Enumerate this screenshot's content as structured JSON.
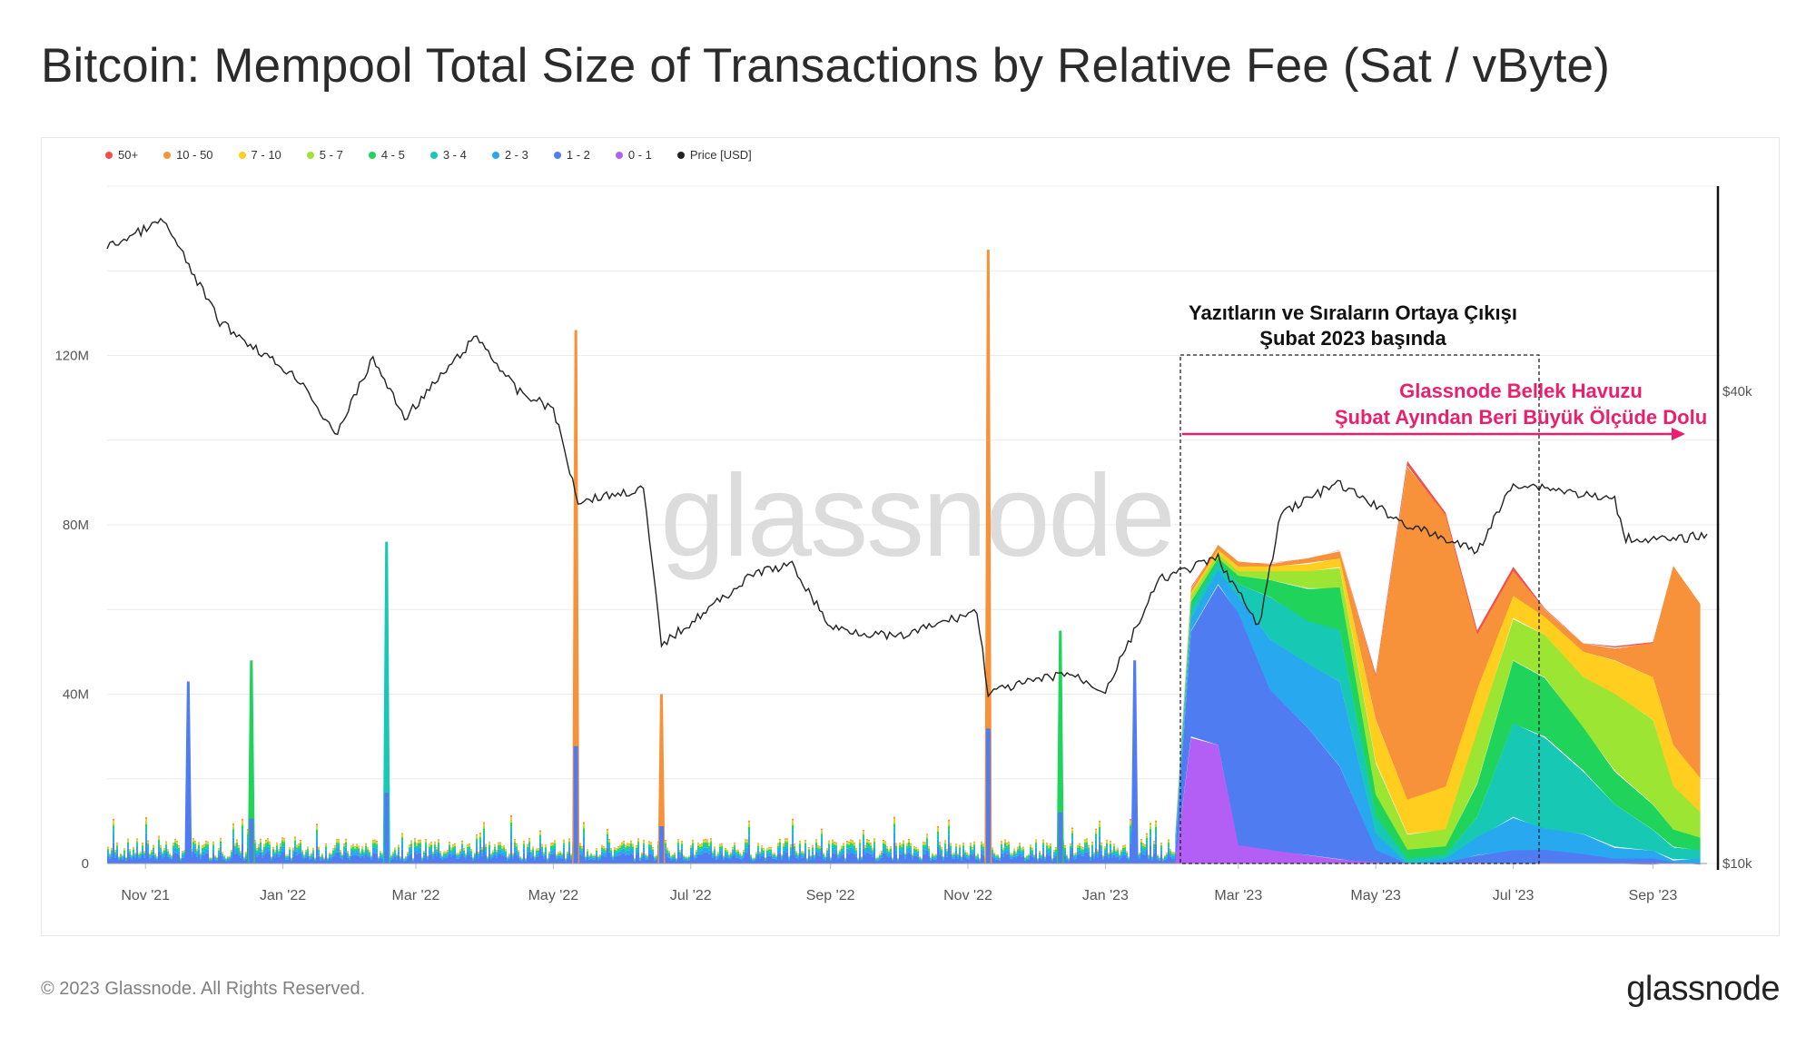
{
  "title": "Bitcoin: Mempool Total Size of Transactions by Relative Fee (Sat / vByte)",
  "legend": [
    {
      "label": "50+",
      "color": "#f0504f"
    },
    {
      "label": "10 - 50",
      "color": "#f7923a"
    },
    {
      "label": "7 - 10",
      "color": "#ffce1f"
    },
    {
      "label": "5 - 7",
      "color": "#9ce533"
    },
    {
      "label": "4 - 5",
      "color": "#1fd35b"
    },
    {
      "label": "3 - 4",
      "color": "#17c9b4"
    },
    {
      "label": "2 - 3",
      "color": "#27a8ef"
    },
    {
      "label": "1 - 2",
      "color": "#4f7df1"
    },
    {
      "label": "0 - 1",
      "color": "#b35ef5"
    },
    {
      "label": "Price [USD]",
      "color": "#222222"
    }
  ],
  "annotations": {
    "inscriptions_line1": "Yazıtların ve Sıraların Ortaya Çıkışı",
    "inscriptions_line2": "Şubat 2023 başında",
    "glassnode_line1": "Glassnode Bellek Havuzu",
    "glassnode_line2": "Şubat Ayından Beri Büyük Ölçüde Dolu",
    "glassnode_color": "#ec1f6e"
  },
  "watermark": "glassnode",
  "footer": {
    "copyright": "© 2023 Glassnode. All Rights Reserved.",
    "logo": "glassnode"
  },
  "chart_data": {
    "type": "area",
    "title": "Bitcoin: Mempool Total Size of Transactions by Relative Fee (Sat / vByte)",
    "x_range": [
      "2021-10-15",
      "2023-09-25"
    ],
    "x_ticks": [
      {
        "label": "Nov '21",
        "date": "2021-11-01"
      },
      {
        "label": "Jan '22",
        "date": "2022-01-01"
      },
      {
        "label": "Mar '22",
        "date": "2022-03-01"
      },
      {
        "label": "May '22",
        "date": "2022-05-01"
      },
      {
        "label": "Jul '22",
        "date": "2022-07-01"
      },
      {
        "label": "Sep '22",
        "date": "2022-09-01"
      },
      {
        "label": "Nov '22",
        "date": "2022-11-01"
      },
      {
        "label": "Jan '23",
        "date": "2023-01-01"
      },
      {
        "label": "Mar '23",
        "date": "2023-03-01"
      },
      {
        "label": "May '23",
        "date": "2023-05-01"
      },
      {
        "label": "Jul '23",
        "date": "2023-07-01"
      },
      {
        "label": "Sep '23",
        "date": "2023-09-01"
      }
    ],
    "y_left": {
      "ticks": [
        {
          "label": "0",
          "value": 0
        },
        {
          "label": "40M",
          "value": 40
        },
        {
          "label": "80M",
          "value": 80
        },
        {
          "label": "120M",
          "value": 120
        }
      ],
      "range": [
        0,
        160
      ]
    },
    "y_right": {
      "ticks": [
        {
          "label": "$10k",
          "value": 10000
        },
        {
          "label": "$40k",
          "value": 40000
        }
      ],
      "scale": "log",
      "range": [
        10000,
        73000
      ]
    },
    "grid": true,
    "legend_position": "top-left",
    "series_order_bottom_to_top": [
      "0 - 1",
      "1 - 2",
      "2 - 3",
      "3 - 4",
      "4 - 5",
      "5 - 7",
      "7 - 10",
      "10 - 50",
      "50+"
    ],
    "stacked_bands_millions": [
      {
        "date": "2023-02-01",
        "values": [
          0,
          3,
          2,
          1,
          0,
          0,
          0,
          1,
          0
        ]
      },
      {
        "date": "2023-02-08",
        "values": [
          30,
          25,
          3,
          2,
          2,
          1,
          1,
          1,
          0
        ]
      },
      {
        "date": "2023-02-20",
        "values": [
          28,
          38,
          3,
          2,
          1,
          1,
          1,
          1,
          0
        ]
      },
      {
        "date": "2023-03-01",
        "values": [
          4,
          55,
          4,
          3,
          2,
          1,
          1,
          1,
          0
        ]
      },
      {
        "date": "2023-03-15",
        "values": [
          3,
          38,
          12,
          10,
          4,
          2,
          1,
          1,
          0
        ]
      },
      {
        "date": "2023-04-01",
        "values": [
          2,
          30,
          15,
          10,
          8,
          4,
          2,
          1,
          0
        ]
      },
      {
        "date": "2023-04-15",
        "values": [
          1,
          22,
          20,
          12,
          10,
          5,
          2,
          2,
          0
        ]
      },
      {
        "date": "2023-05-01",
        "values": [
          0,
          3,
          4,
          4,
          5,
          8,
          10,
          10,
          1
        ]
      },
      {
        "date": "2023-05-15",
        "values": [
          0,
          0,
          0,
          1,
          2,
          4,
          8,
          79,
          1
        ]
      },
      {
        "date": "2023-06-01",
        "values": [
          0,
          0,
          1,
          1,
          2,
          4,
          10,
          64,
          1
        ]
      },
      {
        "date": "2023-06-15",
        "values": [
          0,
          2,
          4,
          5,
          8,
          12,
          10,
          13,
          1
        ]
      },
      {
        "date": "2023-07-01",
        "values": [
          0,
          3,
          8,
          22,
          15,
          10,
          5,
          6,
          1
        ]
      },
      {
        "date": "2023-07-15",
        "values": [
          0,
          3,
          5,
          22,
          14,
          10,
          4,
          2,
          0
        ]
      },
      {
        "date": "2023-08-01",
        "values": [
          0,
          2,
          5,
          15,
          10,
          12,
          6,
          2,
          0
        ]
      },
      {
        "date": "2023-08-15",
        "values": [
          0,
          1,
          3,
          10,
          8,
          18,
          8,
          3,
          0
        ]
      },
      {
        "date": "2023-09-01",
        "values": [
          0,
          1,
          2,
          5,
          6,
          20,
          10,
          8,
          0
        ]
      },
      {
        "date": "2023-09-10",
        "values": [
          0,
          0,
          1,
          3,
          4,
          10,
          10,
          42,
          0
        ]
      },
      {
        "date": "2023-09-22",
        "values": [
          0,
          0,
          1,
          2,
          3,
          6,
          8,
          41,
          0
        ]
      }
    ],
    "spikes_millions": [
      {
        "date": "2021-11-20",
        "total": 43,
        "band": "1 - 2"
      },
      {
        "date": "2021-12-18",
        "total": 48,
        "band": "4 - 5"
      },
      {
        "date": "2022-02-16",
        "total": 76,
        "band": "3 - 4"
      },
      {
        "date": "2022-05-11",
        "total": 126,
        "band": "10 - 50"
      },
      {
        "date": "2022-06-18",
        "total": 40,
        "band": "10 - 50"
      },
      {
        "date": "2022-11-10",
        "total": 145,
        "band": "10 - 50"
      },
      {
        "date": "2022-12-12",
        "total": 55,
        "band": "4 - 5"
      },
      {
        "date": "2023-01-14",
        "total": 48,
        "band": "1 - 2"
      }
    ],
    "price_usd": [
      {
        "date": "2021-10-15",
        "value": 61000
      },
      {
        "date": "2021-11-09",
        "value": 66000
      },
      {
        "date": "2021-12-04",
        "value": 49000
      },
      {
        "date": "2022-01-10",
        "value": 41000
      },
      {
        "date": "2022-01-24",
        "value": 35000
      },
      {
        "date": "2022-02-10",
        "value": 44000
      },
      {
        "date": "2022-02-24",
        "value": 37000
      },
      {
        "date": "2022-03-28",
        "value": 47000
      },
      {
        "date": "2022-04-15",
        "value": 40000
      },
      {
        "date": "2022-05-01",
        "value": 38000
      },
      {
        "date": "2022-05-12",
        "value": 29000
      },
      {
        "date": "2022-06-10",
        "value": 30000
      },
      {
        "date": "2022-06-18",
        "value": 19000
      },
      {
        "date": "2022-07-30",
        "value": 23500
      },
      {
        "date": "2022-08-15",
        "value": 24000
      },
      {
        "date": "2022-09-01",
        "value": 20000
      },
      {
        "date": "2022-10-01",
        "value": 19400
      },
      {
        "date": "2022-11-05",
        "value": 21000
      },
      {
        "date": "2022-11-10",
        "value": 16500
      },
      {
        "date": "2022-12-15",
        "value": 17500
      },
      {
        "date": "2023-01-01",
        "value": 16600
      },
      {
        "date": "2023-01-25",
        "value": 23000
      },
      {
        "date": "2023-02-20",
        "value": 24500
      },
      {
        "date": "2023-03-10",
        "value": 20000
      },
      {
        "date": "2023-03-20",
        "value": 28000
      },
      {
        "date": "2023-04-14",
        "value": 30500
      },
      {
        "date": "2023-05-15",
        "value": 27000
      },
      {
        "date": "2023-06-15",
        "value": 25000
      },
      {
        "date": "2023-07-01",
        "value": 30500
      },
      {
        "date": "2023-07-15",
        "value": 30200
      },
      {
        "date": "2023-08-15",
        "value": 29000
      },
      {
        "date": "2023-08-20",
        "value": 26000
      },
      {
        "date": "2023-09-10",
        "value": 25800
      },
      {
        "date": "2023-09-25",
        "value": 26300
      }
    ]
  }
}
